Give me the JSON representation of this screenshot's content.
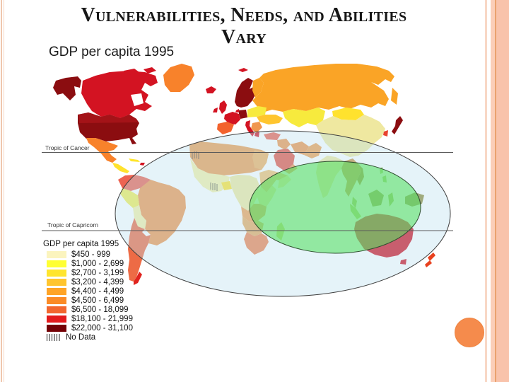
{
  "slide": {
    "title": {
      "line1": "Vulnerabilities, Needs, and Abilities",
      "line2": "Vary"
    }
  },
  "map": {
    "title": "GDP per capita 1995",
    "tropics": {
      "cancer": "Tropic of Cancer",
      "capricorn": "Tropic of Capricorn"
    },
    "legend": {
      "title": "GDP per capita 1995",
      "items": [
        {
          "label": "$450 - 999",
          "color": "#FBF4BE"
        },
        {
          "label": "$1,000 - 2,699",
          "color": "#FFFF33"
        },
        {
          "label": "$2,700 - 3,199",
          "color": "#FFE52E"
        },
        {
          "label": "$3,200 - 4,399",
          "color": "#FFC52E"
        },
        {
          "label": "$4,400 - 4,499",
          "color": "#FFA426"
        },
        {
          "label": "$4,500 - 6,499",
          "color": "#FB8B26"
        },
        {
          "label": "$6,500 - 18,099",
          "color": "#F2662E"
        },
        {
          "label": "$18,100 - 21,999",
          "color": "#E31A1C"
        },
        {
          "label": "$22,000 - 31,100",
          "color": "#740005"
        },
        {
          "label": "No Data",
          "color": "hatch"
        }
      ]
    },
    "overlays": {
      "blue_ellipse": {
        "fill": "rgba(186,224,238,0.38)",
        "stroke": "#3f3f3f"
      },
      "green_ellipse": {
        "fill": "rgba(86,224,96,0.58)",
        "stroke": "#2f4f2f"
      }
    }
  },
  "decor": {
    "circle_color": "#F58B4C"
  }
}
